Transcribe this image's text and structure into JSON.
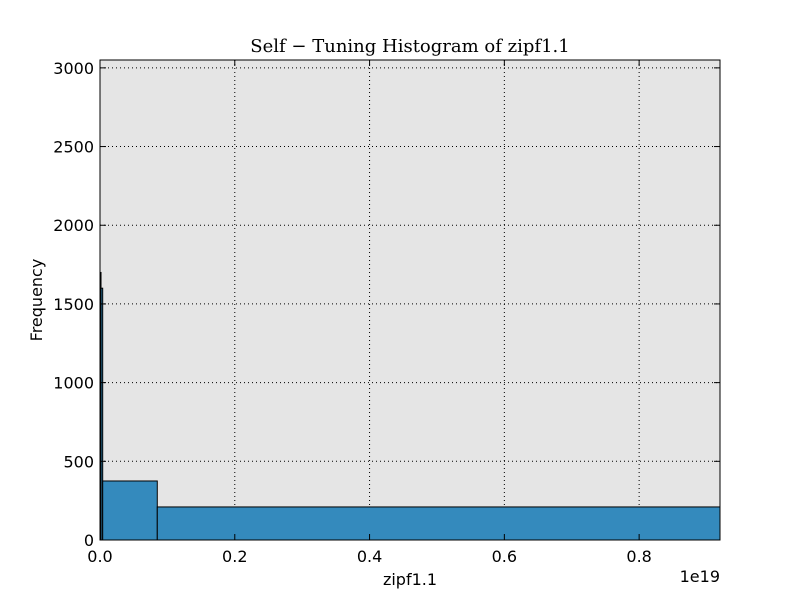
{
  "chart_data": {
    "type": "bar",
    "title": "Self − Tuning Histogram of zipf1.1",
    "xlabel": "zipf1.1",
    "ylabel": "Frequency",
    "x_scale_label": "1e19",
    "x_scale": 1e+19,
    "xlim": [
      0,
      0.92
    ],
    "ylim": [
      0,
      3050
    ],
    "xticks": [
      0.0,
      0.2,
      0.4,
      0.6,
      0.8
    ],
    "xtick_labels": [
      "0.0",
      "0.2",
      "0.4",
      "0.6",
      "0.8"
    ],
    "yticks": [
      0,
      500,
      1000,
      1500,
      2000,
      2500,
      3000
    ],
    "ytick_labels": [
      "0",
      "500",
      "1000",
      "1500",
      "2000",
      "2500",
      "3000"
    ],
    "grid": true,
    "bins": [
      {
        "start": 0.0,
        "end": 0.0015,
        "value": 1700
      },
      {
        "start": 0.0015,
        "end": 0.004,
        "value": 1600
      },
      {
        "start": 0.004,
        "end": 0.085,
        "value": 375
      },
      {
        "start": 0.085,
        "end": 0.92,
        "value": 210
      }
    ],
    "bar_color": "#348abd",
    "background_color": "#e5e5e5"
  }
}
